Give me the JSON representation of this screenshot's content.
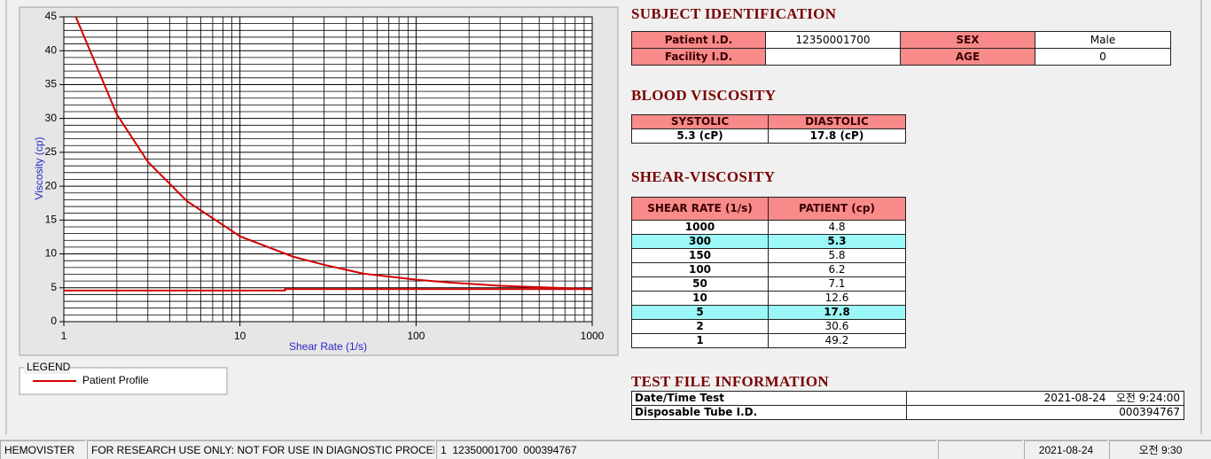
{
  "chart_data": {
    "type": "line",
    "xlabel": "Shear Rate (1/s)",
    "ylabel": "Viscosity (cp)",
    "xscale": "log",
    "xlim": [
      1,
      1000
    ],
    "xticks": [
      1,
      10,
      100,
      1000
    ],
    "ylim": [
      0,
      45
    ],
    "yticks": [
      0,
      5,
      10,
      15,
      20,
      25,
      30,
      35,
      40,
      45
    ],
    "grid": true,
    "minor_grid": true,
    "legend_title": "LEGEND",
    "series": [
      {
        "name": "Patient Profile",
        "color": "#d40000",
        "x": [
          1,
          2,
          3,
          5,
          10,
          20,
          30,
          50,
          100,
          150,
          300,
          1000
        ],
        "values": [
          49.2,
          30.6,
          23.6,
          17.8,
          12.6,
          9.6,
          8.4,
          7.1,
          6.2,
          5.8,
          5.3,
          4.8
        ]
      },
      {
        "color": "#d40000",
        "x": [
          1,
          18,
          18,
          1000
        ],
        "values": [
          4.6,
          4.6,
          4.8,
          4.8
        ]
      }
    ]
  },
  "subject": {
    "title": "SUBJECT IDENTIFICATION",
    "rows": [
      [
        "Patient I.D.",
        "12350001700",
        "SEX",
        "Male"
      ],
      [
        "Facility I.D.",
        null,
        "AGE",
        0
      ]
    ]
  },
  "blood": {
    "title": "BLOOD VISCOSITY",
    "headers": [
      "SYSTOLIC",
      "DIASTOLIC"
    ],
    "values": [
      "5.3 (cP)",
      "17.8 (cP)"
    ]
  },
  "shear": {
    "title": "SHEAR-VISCOSITY",
    "headers": [
      "SHEAR RATE (1/s)",
      "PATIENT (cp)"
    ],
    "rows": [
      {
        "rate": 1000,
        "patient": 4.8
      },
      {
        "rate": 300,
        "patient": 5.3,
        "highlighted": true
      },
      {
        "rate": 150,
        "patient": 5.8
      },
      {
        "rate": 100,
        "patient": 6.2
      },
      {
        "rate": 50,
        "patient": 7.1
      },
      {
        "rate": 10,
        "patient": 12.6
      },
      {
        "rate": 5,
        "patient": 17.8,
        "highlighted": true
      },
      {
        "rate": 2,
        "patient": 30.6
      },
      {
        "rate": 1,
        "patient": 49.2
      }
    ]
  },
  "test_file": {
    "title": "TEST FILE INFORMATION",
    "rows": [
      [
        "Date/Time Test",
        "2021-08-24   오전 9:24:00"
      ],
      [
        "Disposable Tube I.D.",
        "000394767"
      ]
    ]
  },
  "status_bar": [
    "HEMOVISTER",
    "FOR RESEARCH USE ONLY: NOT FOR USE IN DIAGNOSTIC PROCEDURES",
    "1  12350001700  000394767",
    "2021-08-24",
    "오전 9:30"
  ]
}
